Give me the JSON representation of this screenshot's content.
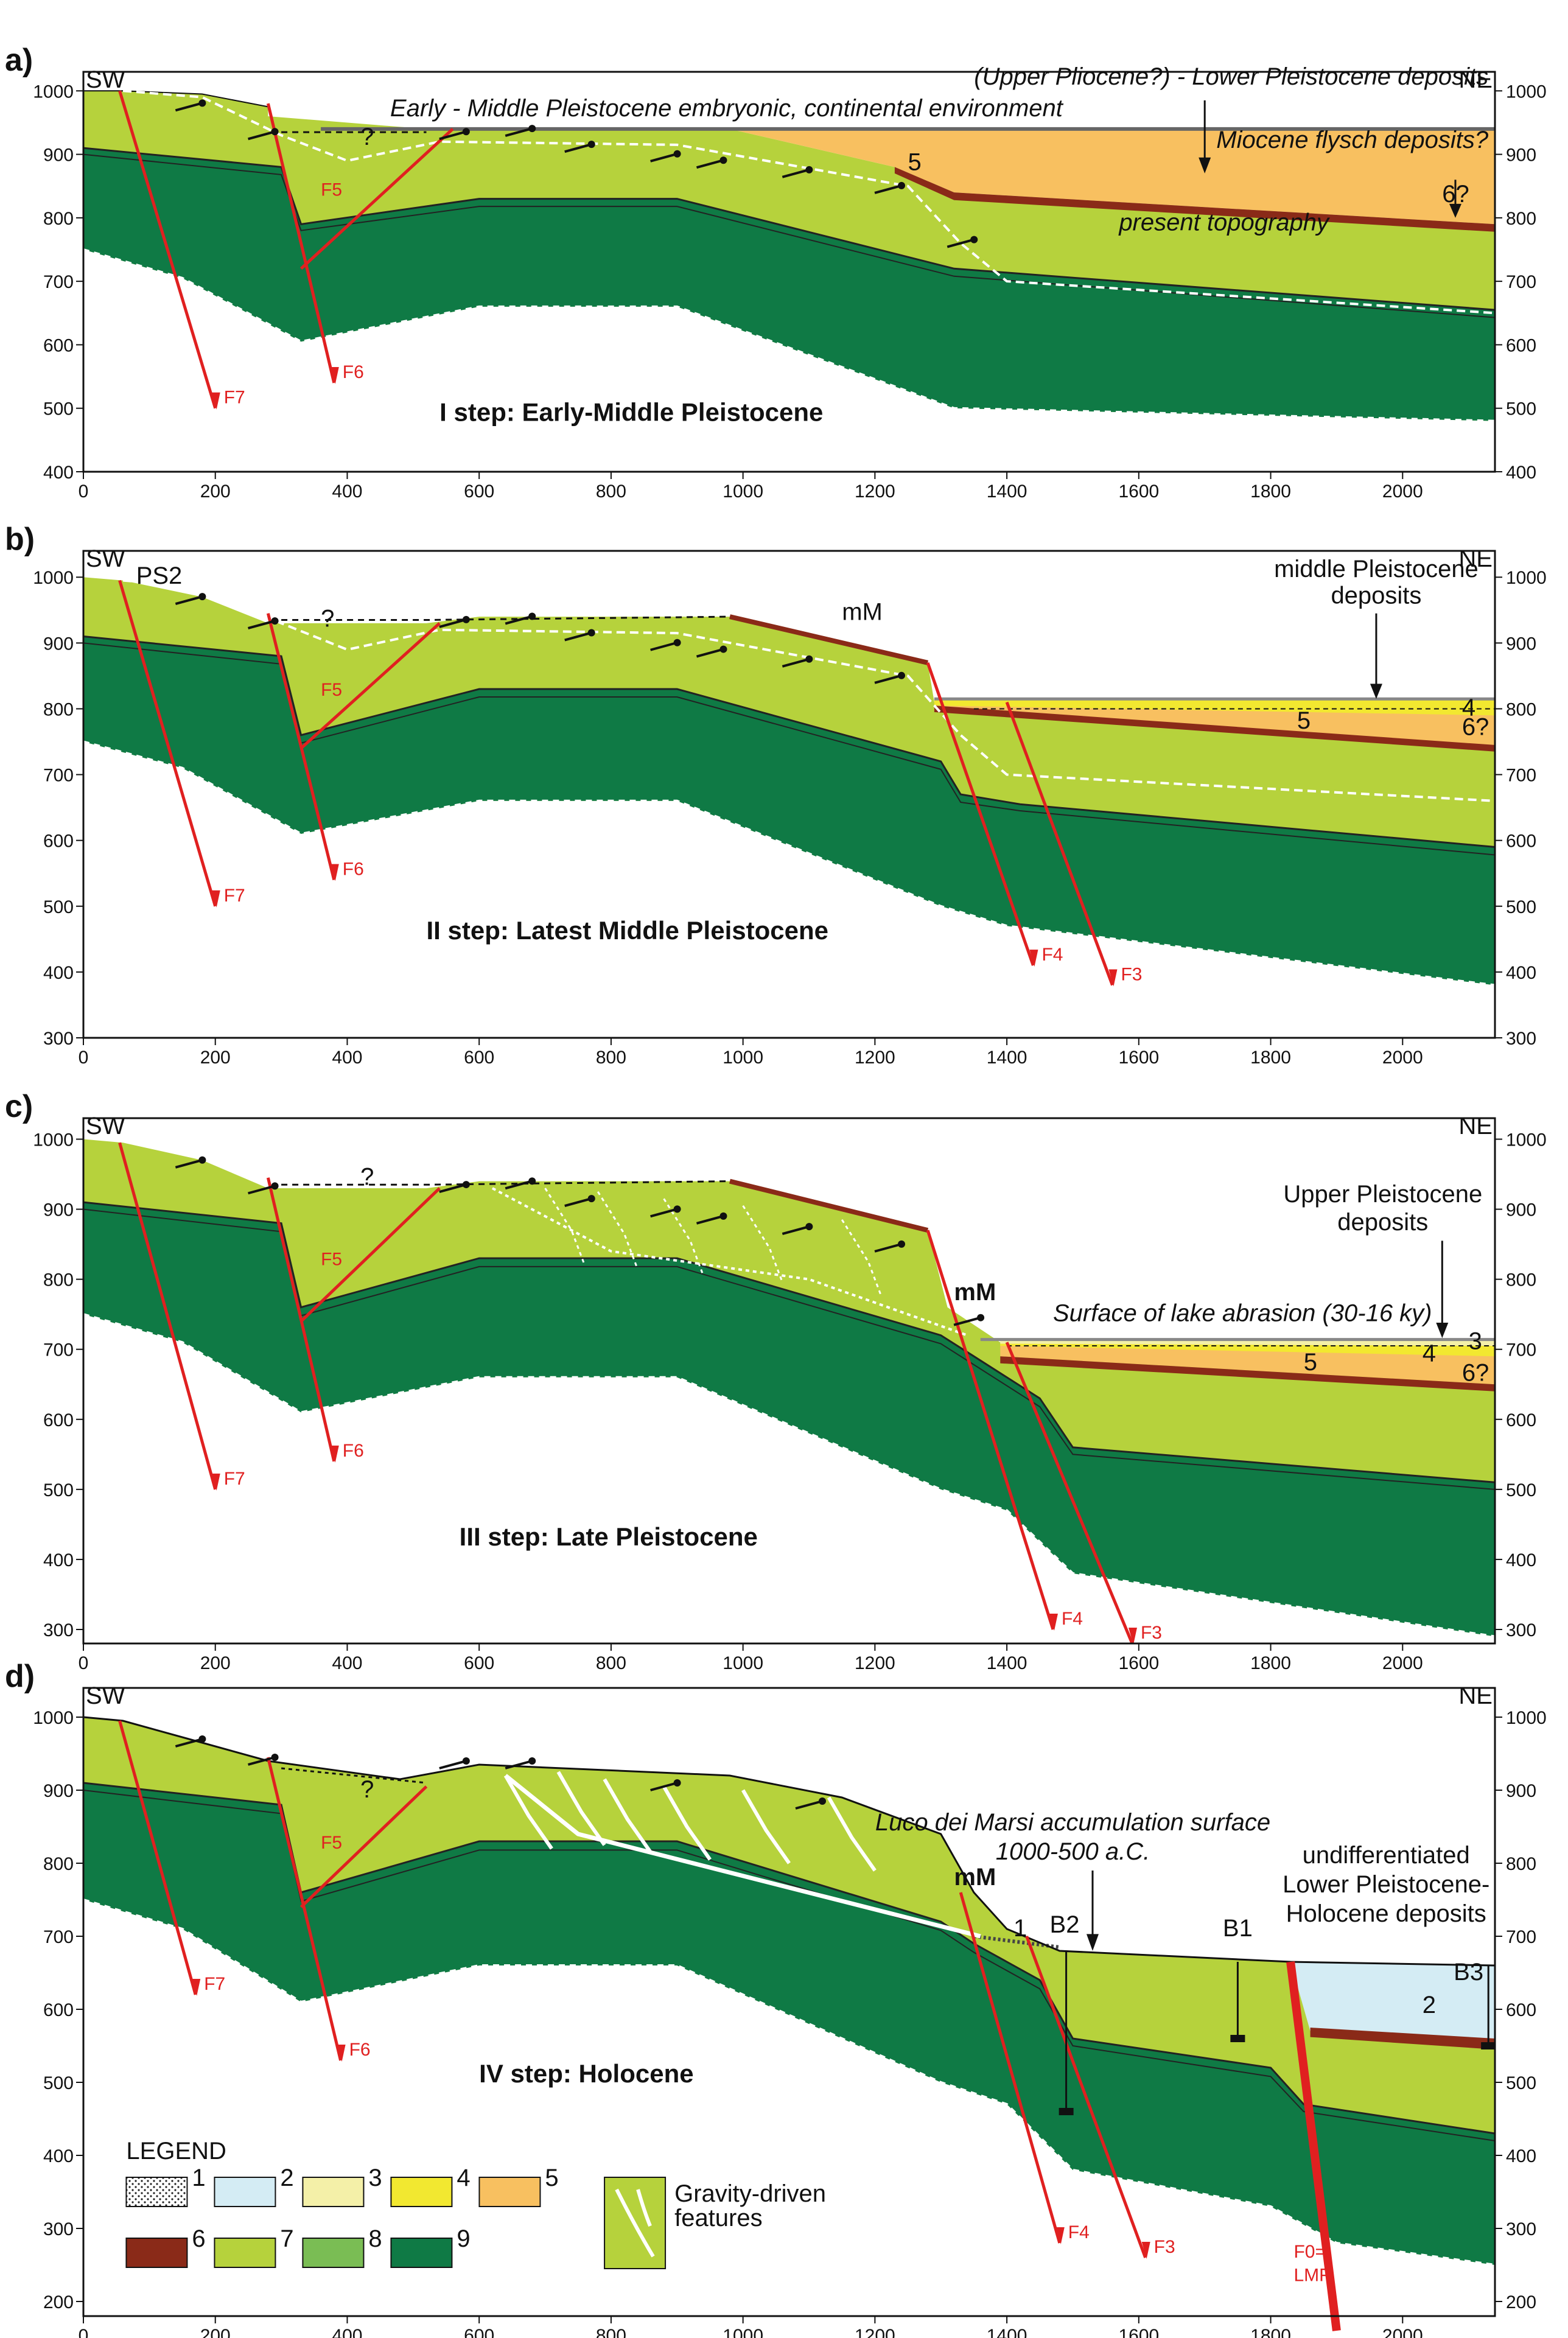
{
  "figure": {
    "panels": [
      {
        "letter": "a)",
        "step_title": "I step: Early-Middle Pleistocene",
        "sw": "SW",
        "ne": "NE",
        "y_ticks": [
          "1000",
          "900",
          "800",
          "700",
          "600",
          "500",
          "400"
        ],
        "x_ticks": [
          "0",
          "200",
          "400",
          "600",
          "800",
          "1000",
          "1200",
          "1400",
          "1600",
          "1800",
          "2000"
        ],
        "annotations": {
          "early_env": "Early - Middle Pleistocene embryonic, continental environment",
          "upper_pliocene": "(Upper Pliocene?) - Lower Pleistocene deposits",
          "miocene": "Miocene flysch deposits?",
          "present_topo": "present topography",
          "unit5": "5",
          "unit6q": "6?",
          "q": "?"
        },
        "faults": [
          "F5",
          "F6",
          "F7"
        ]
      },
      {
        "letter": "b)",
        "step_title": "II step: Latest Middle Pleistocene",
        "sw": "SW",
        "ne": "NE",
        "y_ticks": [
          "1000",
          "900",
          "800",
          "700",
          "600",
          "500",
          "400",
          "300"
        ],
        "x_ticks": [
          "0",
          "200",
          "400",
          "600",
          "800",
          "1000",
          "1200",
          "1400",
          "1600",
          "1800",
          "2000"
        ],
        "annotations": {
          "ps2": "PS2",
          "mm": "mM",
          "middle_pleist_1": "middle Pleistocene",
          "middle_pleist_2": "deposits",
          "unit4": "4",
          "unit5": "5",
          "unit6q": "6?",
          "q": "?"
        },
        "faults": [
          "F5",
          "F6",
          "F7",
          "F4",
          "F3"
        ]
      },
      {
        "letter": "c)",
        "step_title": "III step: Late Pleistocene",
        "sw": "SW",
        "ne": "NE",
        "y_ticks": [
          "1000",
          "900",
          "800",
          "700",
          "600",
          "500",
          "400",
          "300"
        ],
        "x_ticks": [
          "0",
          "200",
          "400",
          "600",
          "800",
          "1000",
          "1200",
          "1400",
          "1600",
          "1800",
          "2000"
        ],
        "annotations": {
          "mm": "mM",
          "upper_pleist_1": "Upper Pleistocene",
          "upper_pleist_2": "deposits",
          "lake": "Surface of lake abrasion (30-16 ky)",
          "unit3": "3",
          "unit4": "4",
          "unit5": "5",
          "unit6q": "6?",
          "q": "?"
        },
        "faults": [
          "F5",
          "F6",
          "F7",
          "F4",
          "F3"
        ]
      },
      {
        "letter": "d)",
        "step_title": "IV step: Holocene",
        "sw": "SW",
        "ne": "NE",
        "y_ticks": [
          "1000",
          "900",
          "800",
          "700",
          "600",
          "500",
          "400",
          "300",
          "200"
        ],
        "x_ticks": [
          "0",
          "200",
          "400",
          "600",
          "800",
          "1000",
          "1200",
          "1400",
          "1600",
          "1800",
          "2000"
        ],
        "annotations": {
          "mm": "mM",
          "luco_1": "Luco dei Marsi accumulation surface",
          "luco_2": "1000-500 a.C.",
          "undiff_1": "undifferentiated",
          "undiff_2": "Lower Pleistocene-",
          "undiff_3": "Holocene deposits",
          "unit1": "1",
          "unit2": "2",
          "b1": "B1",
          "b2": "B2",
          "b3": "B3",
          "f0_1": "F0=",
          "f0_2": "LMF",
          "q": "?"
        },
        "faults": [
          "F5",
          "F6",
          "F7",
          "F4",
          "F3"
        ]
      }
    ]
  },
  "legend": {
    "title": "LEGEND",
    "items": [
      {
        "label": "1",
        "color": "#ffffff"
      },
      {
        "label": "2",
        "color": "#d4ecf4"
      },
      {
        "label": "3",
        "color": "#f4f0a8"
      },
      {
        "label": "4",
        "color": "#f2e830"
      },
      {
        "label": "5",
        "color": "#f8c060"
      },
      {
        "label": "6",
        "color": "#8a2a18"
      },
      {
        "label": "7",
        "color": "#b6d23c"
      },
      {
        "label": "8",
        "color": "#7abd54"
      },
      {
        "label": "9",
        "color": "#0f7a45"
      }
    ],
    "gravity_1": "Gravity-driven",
    "gravity_2": "features"
  }
}
